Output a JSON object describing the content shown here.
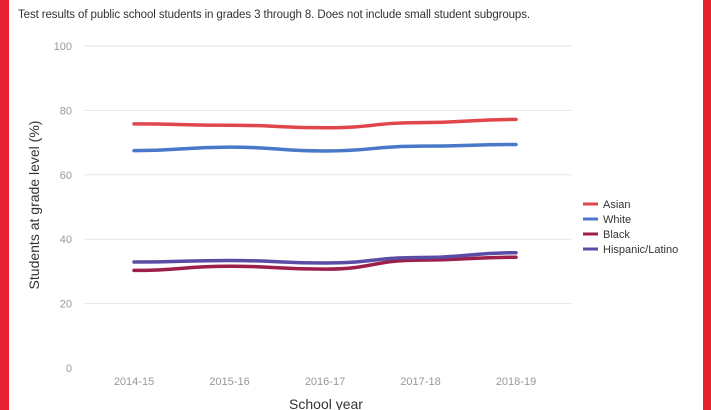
{
  "page": {
    "subtitle": "Test results of public school students in grades 3 through 8. Does not include small student subgroups."
  },
  "colors": {
    "frame": "#e8232f",
    "Asian": "#e0474c",
    "White": "#4a78c8",
    "Black": "#9c1f4c",
    "Hispanic/Latino": "#5a4da6",
    "grid": "#e6e6e6"
  },
  "chart_data": {
    "type": "line",
    "title": "",
    "subtitle": "Test results of public school students in grades 3 through 8. Does not include small student subgroups.",
    "xlabel": "School year",
    "ylabel": "Students at grade level (%)",
    "categories": [
      "2014-15",
      "2015-16",
      "2016-17",
      "2017-18",
      "2018-19"
    ],
    "ylim": [
      0,
      100
    ],
    "yticks": [
      0,
      20,
      40,
      60,
      80,
      100
    ],
    "grid": true,
    "legend_position": "right",
    "series": [
      {
        "name": "Asian",
        "values": [
          75.8,
          75.4,
          74.6,
          76.2,
          77.2
        ]
      },
      {
        "name": "White",
        "values": [
          67.5,
          68.6,
          67.4,
          68.9,
          69.4
        ]
      },
      {
        "name": "Black",
        "values": [
          30.3,
          31.6,
          30.7,
          33.5,
          34.4
        ]
      },
      {
        "name": "Hispanic/Latino",
        "values": [
          32.9,
          33.4,
          32.6,
          34.3,
          35.8
        ]
      }
    ]
  }
}
